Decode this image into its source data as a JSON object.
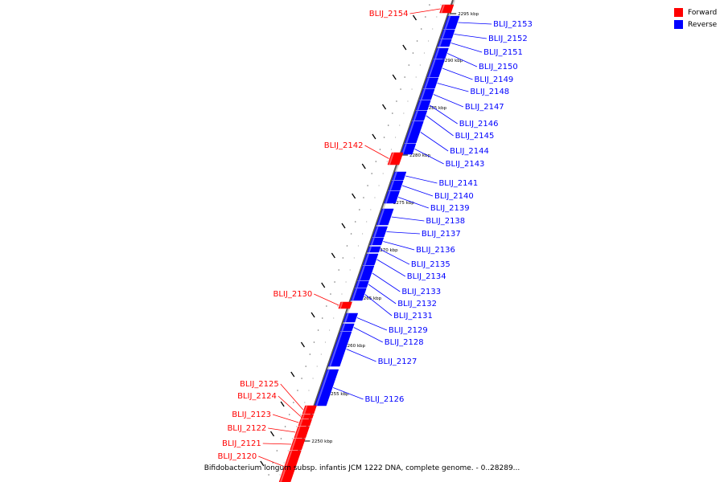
{
  "legend": {
    "forward_label": "Forward",
    "reverse_label": "Reverse",
    "forward_color": "#ff0000",
    "reverse_color": "#0000ff"
  },
  "caption": "Bifidobacterium longum subsp. infantis JCM 1222 DNA, complete genome. - 0..28289...",
  "axis": {
    "ticks": [
      "2250 kbp",
      "2255 kbp",
      "2260 kbp",
      "2265 kbp",
      "2270 kbp",
      "2275 kbp",
      "2280 kbp",
      "2285 kbp",
      "2290 kbp",
      "2295 kbp"
    ]
  },
  "genes": {
    "forward": [
      "BLIJ_2154",
      "BLIJ_2142",
      "BLIJ_2130",
      "BLIJ_2125",
      "BLIJ_2124",
      "BLIJ_2123",
      "BLIJ_2122",
      "BLIJ_2121",
      "BLIJ_2120"
    ],
    "reverse": [
      "BLIJ_2153",
      "BLIJ_2152",
      "BLIJ_2151",
      "BLIJ_2150",
      "BLIJ_2149",
      "BLIJ_2148",
      "BLIJ_2147",
      "BLIJ_2146",
      "BLIJ_2145",
      "BLIJ_2144",
      "BLIJ_2143",
      "BLIJ_2141",
      "BLIJ_2140",
      "BLIJ_2139",
      "BLIJ_2138",
      "BLIJ_2137",
      "BLIJ_2136",
      "BLIJ_2135",
      "BLIJ_2134",
      "BLIJ_2133",
      "BLIJ_2132",
      "BLIJ_2131",
      "BLIJ_2129",
      "BLIJ_2128",
      "BLIJ_2127",
      "BLIJ_2126"
    ]
  }
}
